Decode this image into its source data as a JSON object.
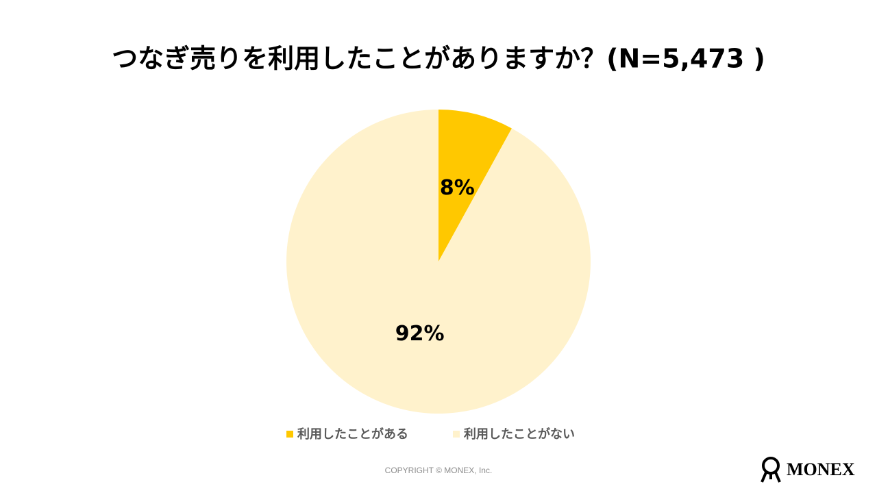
{
  "chart_data": {
    "type": "pie",
    "title": "つなぎ売りを利用したことがありますか？(N=5,473 )",
    "categories": [
      "利用したことがある",
      "利用したことがない"
    ],
    "values": [
      8,
      92
    ],
    "value_labels": [
      "8%",
      "92%"
    ],
    "colors": [
      "#FFC800",
      "#FFF2CC"
    ],
    "legend": "bottom"
  },
  "footer": {
    "copyright": "COPYRIGHT © MONEX, Inc."
  },
  "logo": {
    "text": "MONEX"
  }
}
